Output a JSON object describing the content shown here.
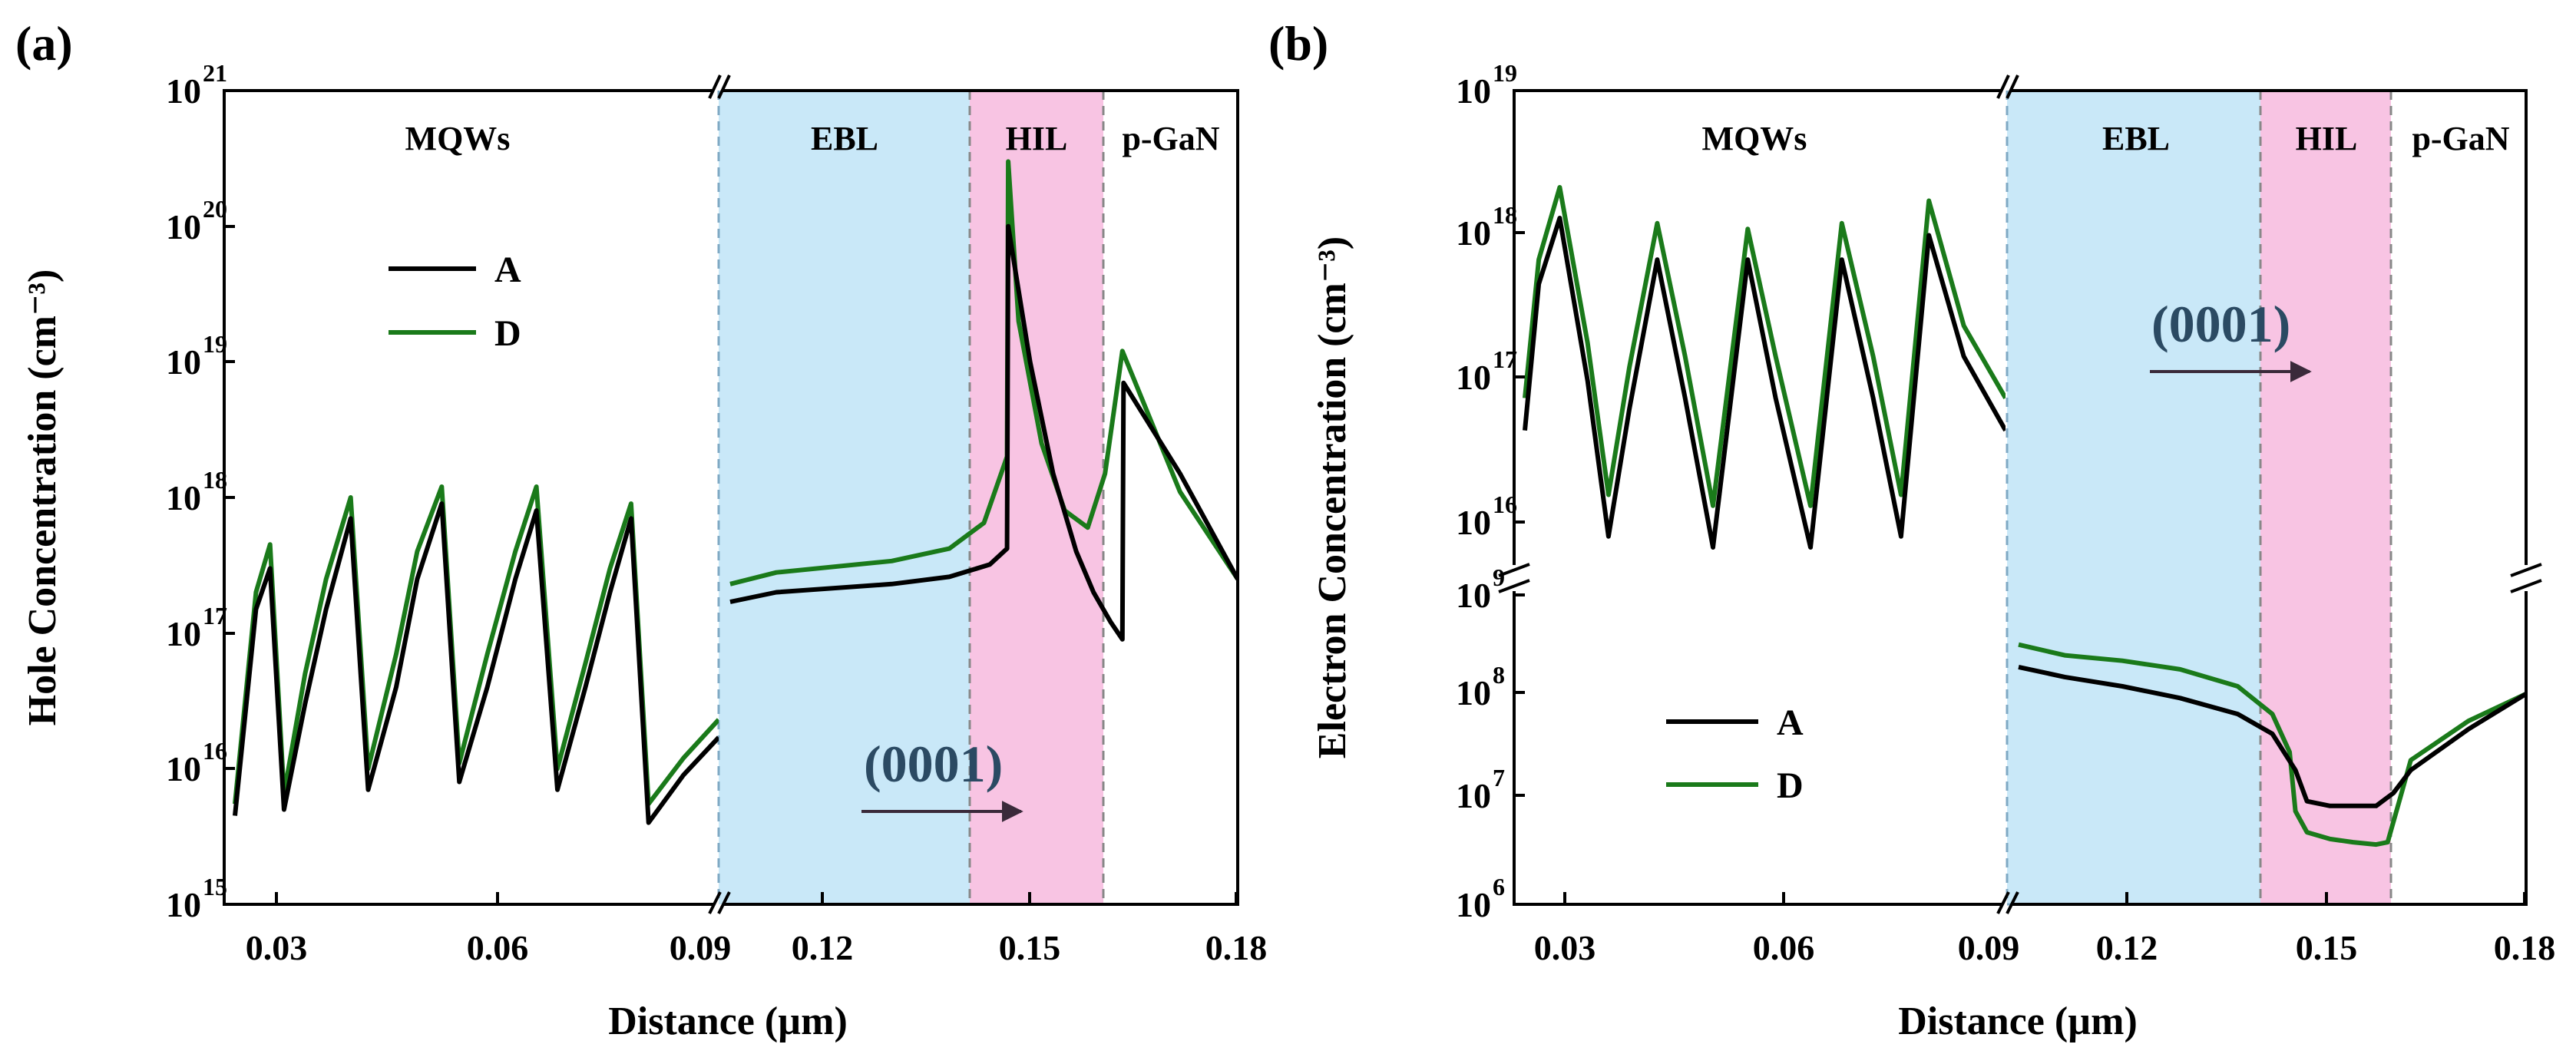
{
  "chart_data": [
    {
      "panel_label": "(a)",
      "type": "line",
      "ylabel": "Hole Concentration (cm⁻³)",
      "xlabel": "Distance (µm)",
      "yscale": "log",
      "ylim": [
        1000000000000000.0,
        1e+21
      ],
      "y_tick_labels": [
        "10",
        "10",
        "10",
        "10",
        "10",
        "10",
        "10"
      ],
      "y_tick_exponents": [
        "15",
        "16",
        "17",
        "18",
        "19",
        "20",
        "21"
      ],
      "x_tick_labels_left": [
        "0.03",
        "0.06",
        "0.09"
      ],
      "x_tick_labels_right": [
        "0.12",
        "0.15",
        "0.18"
      ],
      "regions": [
        "MQWs",
        "EBL",
        "HIL",
        "p-GaN"
      ],
      "direction_label": "(0001)",
      "legend": [
        "A",
        "D"
      ],
      "series_colors": {
        "A": "#000000",
        "D": "#1a7a1a"
      },
      "region_colors": {
        "EBL": "#c9e8f8",
        "HIL": "#f8c4e3"
      },
      "series_left": [
        {
          "name": "A",
          "x": [
            0.021,
            0.024,
            0.026,
            0.028,
            0.031,
            0.034,
            0.0375,
            0.04,
            0.044,
            0.047,
            0.0505,
            0.053,
            0.057,
            0.061,
            0.064,
            0.067,
            0.071,
            0.0745,
            0.0775,
            0.08,
            0.085,
            0.09
          ],
          "y": [
            4500000000000000.0,
            1.5e+17,
            3e+17,
            5000000000000000.0,
            3e+16,
            1.5e+17,
            7e+17,
            7000000000000000.0,
            4e+16,
            2.5e+17,
            9e+17,
            8000000000000000.0,
            4e+16,
            2.5e+17,
            8e+17,
            7000000000000000.0,
            4e+16,
            2e+17,
            7e+17,
            4000000000000000.0,
            9000000000000000.0,
            1.7e+16
          ]
        },
        {
          "name": "D",
          "x": [
            0.021,
            0.024,
            0.026,
            0.028,
            0.031,
            0.034,
            0.0375,
            0.04,
            0.044,
            0.047,
            0.0505,
            0.053,
            0.057,
            0.061,
            0.064,
            0.067,
            0.071,
            0.0745,
            0.0775,
            0.08,
            0.085,
            0.09
          ],
          "y": [
            5500000000000000.0,
            2e+17,
            4.5e+17,
            6500000000000000.0,
            5e+16,
            2.5e+17,
            1e+18,
            1e+16,
            7e+16,
            4e+17,
            1.2e+18,
            1.1e+16,
            7e+16,
            4e+17,
            1.2e+18,
            1e+16,
            6e+16,
            3e+17,
            9e+17,
            5500000000000000.0,
            1.2e+16,
            2.3e+16
          ]
        }
      ],
      "series_right": [
        {
          "name": "A",
          "x": [
            0.092,
            0.1,
            0.12,
            0.13,
            0.137,
            0.14,
            0.1402,
            0.144,
            0.148,
            0.152,
            0.155,
            0.158,
            0.16,
            0.1602,
            0.17,
            0.18
          ],
          "y": [
            1.7e+17,
            2e+17,
            2.3e+17,
            2.6e+17,
            3.2e+17,
            4.2e+17,
            1e+20,
            1e+19,
            1.5e+18,
            4e+17,
            2e+17,
            1.2e+17,
            9e+16,
            7e+18,
            1.5e+18,
            2.5e+17
          ]
        },
        {
          "name": "D",
          "x": [
            0.092,
            0.1,
            0.12,
            0.13,
            0.136,
            0.14,
            0.1402,
            0.142,
            0.146,
            0.15,
            0.154,
            0.157,
            0.16,
            0.17,
            0.18
          ],
          "y": [
            2.3e+17,
            2.8e+17,
            3.4e+17,
            4.2e+17,
            6.5e+17,
            2e+18,
            3e+20,
            2e+19,
            2.5e+18,
            8e+17,
            6e+17,
            1.5e+18,
            1.2e+19,
            1.1e+18,
            2.5e+17
          ]
        }
      ]
    },
    {
      "panel_label": "(b)",
      "type": "line",
      "ylabel": "Electron Concentration (cm⁻³)",
      "xlabel": "Distance (µm)",
      "yscale": "log",
      "ylim_upper": [
        3000000000000000.0,
        1e+19
      ],
      "ylim_lower": [
        1000000.0,
        1000000000.0
      ],
      "y_tick_labels_upper": [
        "10",
        "10",
        "10",
        "10"
      ],
      "y_tick_exponents_upper": [
        "16",
        "17",
        "18",
        "19"
      ],
      "y_tick_labels_lower": [
        "10",
        "10",
        "10",
        "10"
      ],
      "y_tick_exponents_lower": [
        "6",
        "7",
        "8",
        "9"
      ],
      "x_tick_labels_left": [
        "0.03",
        "0.06",
        "0.09"
      ],
      "x_tick_labels_right": [
        "0.12",
        "0.15",
        "0.18"
      ],
      "regions": [
        "MQWs",
        "EBL",
        "HIL",
        "p-GaN"
      ],
      "direction_label": "(0001)",
      "legend": [
        "A",
        "D"
      ],
      "series_colors": {
        "A": "#000000",
        "D": "#1a7a1a"
      },
      "series_upper": [
        {
          "name": "A",
          "x": [
            0.021,
            0.023,
            0.026,
            0.03,
            0.033,
            0.036,
            0.04,
            0.044,
            0.048,
            0.053,
            0.057,
            0.062,
            0.0665,
            0.071,
            0.075,
            0.079,
            0.084,
            0.09
          ],
          "y": [
            3.5e+16,
            4e+17,
            1.2e+18,
            8e+16,
            6000000000000000.0,
            5e+16,
            6e+17,
            6e+16,
            5000000000000000.0,
            6e+17,
            6e+16,
            5000000000000000.0,
            6e+17,
            6e+16,
            6000000000000000.0,
            9e+17,
            1.2e+17,
            3.5e+16
          ]
        },
        {
          "name": "D",
          "x": [
            0.021,
            0.023,
            0.026,
            0.03,
            0.033,
            0.036,
            0.04,
            0.044,
            0.048,
            0.053,
            0.057,
            0.062,
            0.0665,
            0.071,
            0.075,
            0.079,
            0.084,
            0.09
          ],
          "y": [
            6e+16,
            6e+17,
            2e+18,
            1.5e+17,
            1.2e+16,
            1e+17,
            1.1e+18,
            1.2e+17,
            1e+16,
            1e+18,
            1.2e+17,
            1e+16,
            1.1e+18,
            1.2e+17,
            1.2e+16,
            1.6e+18,
            2e+17,
            6e+16
          ]
        }
      ],
      "series_lower": [
        {
          "name": "A",
          "x": [
            0.092,
            0.1,
            0.11,
            0.12,
            0.13,
            0.136,
            0.14,
            0.142,
            0.146,
            0.15,
            0.154,
            0.157,
            0.16,
            0.17,
            0.18
          ],
          "y": [
            200000000.0,
            160000000.0,
            130000000.0,
            100000000.0,
            70000000.0,
            45000000.0,
            20000000.0,
            10000000.0,
            9000000.0,
            9000000.0,
            9000000.0,
            12000000.0,
            20000000.0,
            50000000.0,
            110000000.0
          ]
        },
        {
          "name": "D",
          "x": [
            0.092,
            0.1,
            0.11,
            0.12,
            0.13,
            0.136,
            0.139,
            0.14,
            0.142,
            0.146,
            0.15,
            0.154,
            0.156,
            0.158,
            0.16,
            0.17,
            0.18
          ],
          "y": [
            330000000.0,
            260000000.0,
            230000000.0,
            190000000.0,
            130000000.0,
            70000000.0,
            30000000.0,
            8000000.0,
            5000000.0,
            4300000.0,
            4000000.0,
            3800000.0,
            4000000.0,
            10000000.0,
            25000000.0,
            60000000.0,
            110000000.0
          ]
        }
      ]
    }
  ]
}
